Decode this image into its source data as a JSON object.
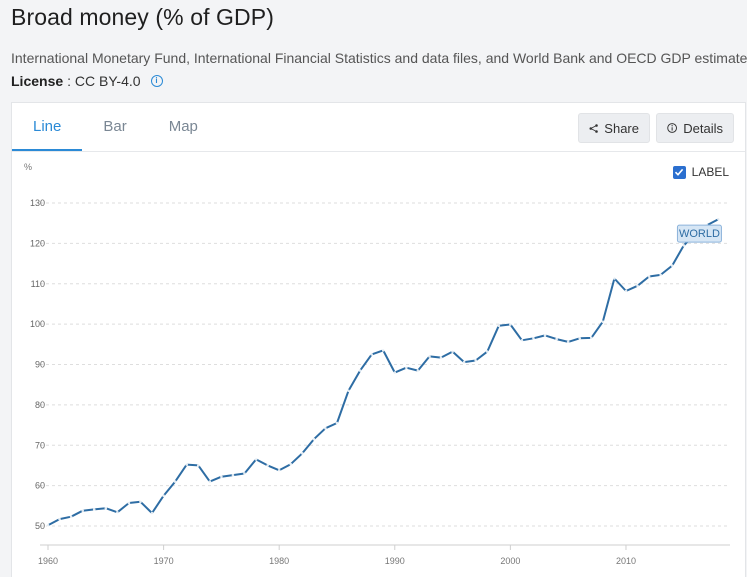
{
  "header": {
    "title": "Broad money (% of GDP)",
    "source": "International Monetary Fund, International Financial Statistics and data files, and World Bank and OECD GDP estimates.",
    "license_label": "License",
    "license_value": " : CC BY-4.0",
    "license_info_icon": "info-icon"
  },
  "tabs": [
    {
      "label": "Line",
      "active": true
    },
    {
      "label": "Bar",
      "active": false
    },
    {
      "label": "Map",
      "active": false
    }
  ],
  "toolbar": {
    "share_label": "Share",
    "share_icon": "share-icon",
    "details_label": "Details",
    "details_icon": "info-icon"
  },
  "label_toggle": {
    "label": "LABEL",
    "checked": true
  },
  "colors": {
    "accent": "#2b8ad6",
    "series": "#2e6da4"
  },
  "chart_data": {
    "type": "line",
    "ylabel": "%",
    "ylim": [
      50,
      130
    ],
    "yticks": [
      50,
      60,
      70,
      80,
      90,
      100,
      110,
      120,
      130
    ],
    "xlim": [
      1960,
      2019
    ],
    "xticks": [
      1960,
      1970,
      1980,
      1990,
      2000,
      2010
    ],
    "grid": true,
    "series": [
      {
        "name": "WORLD",
        "x": [
          1960,
          1961,
          1962,
          1963,
          1964,
          1965,
          1966,
          1967,
          1968,
          1969,
          1970,
          1971,
          1972,
          1973,
          1974,
          1975,
          1976,
          1977,
          1978,
          1979,
          1980,
          1981,
          1982,
          1983,
          1984,
          1985,
          1986,
          1987,
          1988,
          1989,
          1990,
          1991,
          1992,
          1993,
          1994,
          1995,
          1996,
          1997,
          1998,
          1999,
          2000,
          2001,
          2002,
          2003,
          2004,
          2005,
          2006,
          2007,
          2008,
          2009,
          2010,
          2011,
          2012,
          2013,
          2014,
          2015,
          2016,
          2017,
          2018
        ],
        "values": [
          50.2,
          51.7,
          52.3,
          53.8,
          54.1,
          54.4,
          53.4,
          55.7,
          56.0,
          53.2,
          57.5,
          61.0,
          65.2,
          65.0,
          61.0,
          62.2,
          62.6,
          63.0,
          66.5,
          65.0,
          63.8,
          65.3,
          68.0,
          71.5,
          74.2,
          75.5,
          83.5,
          88.5,
          92.5,
          93.5,
          88.0,
          89.2,
          88.5,
          92.0,
          91.7,
          93.2,
          90.6,
          91.0,
          93.2,
          99.6,
          99.9,
          96.0,
          96.5,
          97.2,
          96.3,
          95.6,
          96.5,
          96.6,
          100.6,
          111.3,
          108.2,
          109.5,
          111.8,
          112.2,
          114.5,
          119.5,
          122.3,
          124.5,
          126.0
        ]
      }
    ]
  }
}
